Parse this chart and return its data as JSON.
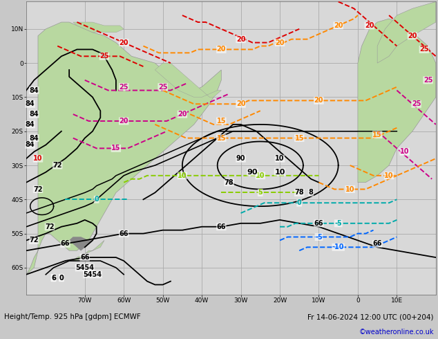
{
  "title_left": "Height/Temp. 925 hPa [gdpm] ECMWF",
  "title_right": "Fr 14-06-2024 12:00 UTC (00+204)",
  "copyright": "©weatheronline.co.uk",
  "bg_color": "#e0e0e0",
  "ocean_color": "#d8d8d8",
  "land_color_sa": "#b8d8a0",
  "land_color_af": "#b8d8a0",
  "grid_color": "#aaaaaa",
  "text_color": "#000000",
  "copyright_color": "#0000cc",
  "figsize": [
    6.34,
    4.9
  ],
  "dpi": 100,
  "lon_min": -85,
  "lon_max": 20,
  "lat_min": -68,
  "lat_max": 18,
  "grid_lons": [
    -70,
    -60,
    -50,
    -40,
    -30,
    -20,
    -10,
    0,
    10
  ],
  "grid_lats": [
    -60,
    -50,
    -40,
    -30,
    -20,
    -10,
    0,
    10
  ],
  "lon_tick_labels": [
    "70W",
    "60W",
    "50W",
    "40W",
    "30W",
    "20W",
    "10W",
    "0",
    "10E"
  ],
  "lat_tick_labels": [
    "60S",
    "50S",
    "40S",
    "30S",
    "20S",
    "10S",
    "0",
    "10N"
  ]
}
